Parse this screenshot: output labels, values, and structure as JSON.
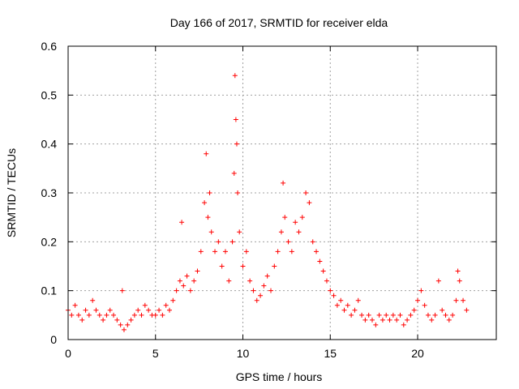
{
  "chart_data": {
    "type": "scatter",
    "title": "Day 166 of 2017, SRMTID for receiver elda",
    "xlabel": "GPS time / hours",
    "ylabel": "SRMTID / TECUs",
    "xlim": [
      0,
      24.5
    ],
    "ylim": [
      0,
      0.6
    ],
    "xticks": [
      "0",
      "5",
      "10",
      "15",
      "20"
    ],
    "xtick_values": [
      0,
      5,
      10,
      15,
      20
    ],
    "yticks": [
      "0",
      "0.1",
      "0.2",
      "0.3",
      "0.4",
      "0.5",
      "0.6"
    ],
    "ytick_values": [
      0,
      0.1,
      0.2,
      0.3,
      0.4,
      0.5,
      0.6
    ],
    "grid": true,
    "marker": "+",
    "marker_color": "#ff0000",
    "series": [
      {
        "name": "SRMTID",
        "x": [
          0.0,
          0.2,
          0.4,
          0.6,
          0.8,
          1.0,
          1.2,
          1.4,
          1.6,
          1.8,
          2.0,
          2.2,
          2.4,
          2.6,
          2.8,
          3.0,
          3.1,
          3.2,
          3.4,
          3.6,
          3.8,
          4.0,
          4.2,
          4.4,
          4.6,
          4.8,
          5.0,
          5.2,
          5.4,
          5.6,
          5.8,
          6.0,
          6.2,
          6.4,
          6.5,
          6.6,
          6.8,
          7.0,
          7.2,
          7.4,
          7.6,
          7.8,
          7.9,
          8.0,
          8.1,
          8.2,
          8.4,
          8.6,
          8.8,
          9.0,
          9.2,
          9.4,
          9.5,
          9.55,
          9.6,
          9.65,
          9.7,
          9.8,
          10.0,
          10.2,
          10.4,
          10.6,
          10.8,
          11.0,
          11.2,
          11.4,
          11.6,
          11.8,
          12.0,
          12.2,
          12.3,
          12.4,
          12.6,
          12.8,
          13.0,
          13.2,
          13.4,
          13.6,
          13.8,
          14.0,
          14.2,
          14.4,
          14.6,
          14.8,
          15.0,
          15.2,
          15.4,
          15.6,
          15.8,
          16.0,
          16.2,
          16.4,
          16.6,
          16.8,
          17.0,
          17.2,
          17.4,
          17.6,
          17.8,
          18.0,
          18.2,
          18.4,
          18.6,
          18.8,
          19.0,
          19.2,
          19.4,
          19.6,
          19.8,
          20.0,
          20.2,
          20.4,
          20.6,
          20.8,
          21.0,
          21.2,
          21.4,
          21.6,
          21.8,
          22.0,
          22.2,
          22.3,
          22.4,
          22.6,
          22.8
        ],
        "y": [
          0.06,
          0.05,
          0.07,
          0.05,
          0.04,
          0.06,
          0.05,
          0.08,
          0.06,
          0.05,
          0.04,
          0.05,
          0.06,
          0.05,
          0.04,
          0.03,
          0.1,
          0.02,
          0.03,
          0.04,
          0.05,
          0.06,
          0.05,
          0.07,
          0.06,
          0.05,
          0.05,
          0.06,
          0.05,
          0.07,
          0.06,
          0.08,
          0.1,
          0.12,
          0.24,
          0.11,
          0.13,
          0.1,
          0.12,
          0.14,
          0.18,
          0.28,
          0.38,
          0.25,
          0.3,
          0.22,
          0.18,
          0.2,
          0.15,
          0.18,
          0.12,
          0.2,
          0.34,
          0.54,
          0.45,
          0.4,
          0.3,
          0.22,
          0.15,
          0.18,
          0.12,
          0.1,
          0.08,
          0.09,
          0.11,
          0.13,
          0.1,
          0.15,
          0.18,
          0.22,
          0.32,
          0.25,
          0.2,
          0.18,
          0.24,
          0.22,
          0.25,
          0.3,
          0.28,
          0.2,
          0.18,
          0.16,
          0.14,
          0.12,
          0.1,
          0.09,
          0.07,
          0.08,
          0.06,
          0.07,
          0.05,
          0.06,
          0.08,
          0.05,
          0.04,
          0.05,
          0.04,
          0.03,
          0.05,
          0.04,
          0.05,
          0.04,
          0.05,
          0.04,
          0.05,
          0.03,
          0.04,
          0.05,
          0.06,
          0.08,
          0.1,
          0.07,
          0.05,
          0.04,
          0.05,
          0.12,
          0.06,
          0.05,
          0.04,
          0.05,
          0.08,
          0.14,
          0.12,
          0.08,
          0.06
        ]
      }
    ]
  }
}
